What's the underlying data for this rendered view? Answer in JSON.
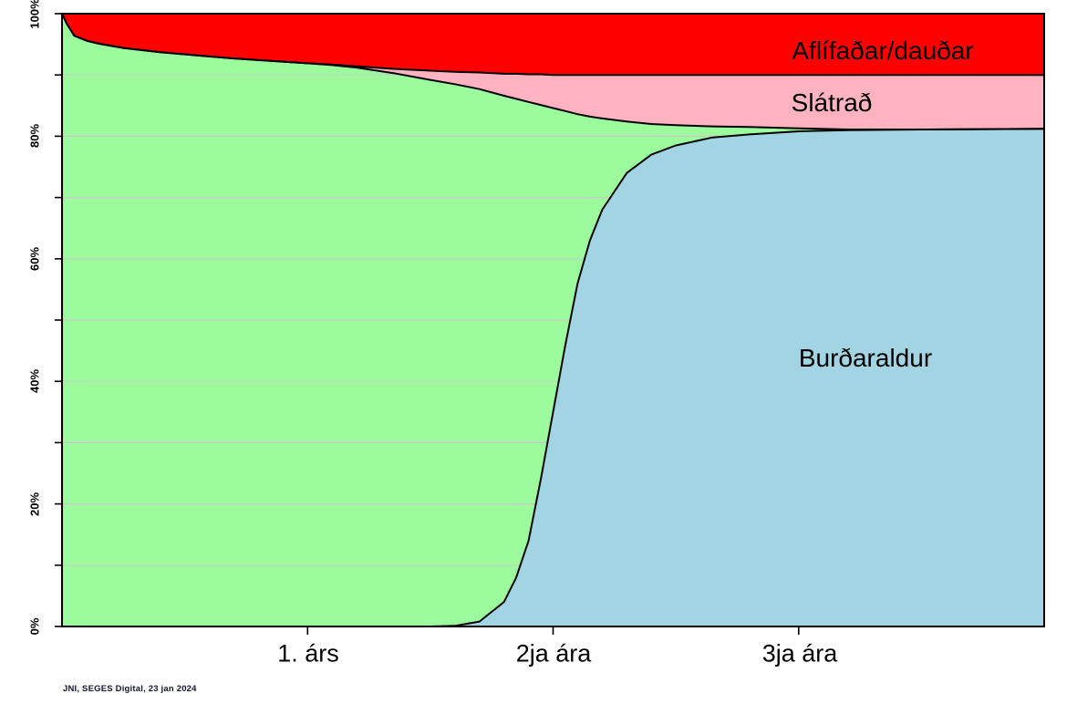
{
  "footer": {
    "credit": "JNI, SEGES Digital, 23 jan 2024"
  },
  "chart_data": {
    "type": "area",
    "stacked": true,
    "title": "",
    "xlabel": "",
    "ylabel": "",
    "xlim": [
      0,
      4
    ],
    "ylim": [
      0,
      100
    ],
    "grid": true,
    "grid_step": 10,
    "legend_position": "inline-labels",
    "xticks": [
      {
        "v": 1,
        "label": "1. árs"
      },
      {
        "v": 2,
        "label": "2ja ára"
      },
      {
        "v": 3,
        "label": "3ja ára"
      }
    ],
    "yticks": [
      {
        "v": 0,
        "label": "0%"
      },
      {
        "v": 20,
        "label": "20%"
      },
      {
        "v": 40,
        "label": "40%"
      },
      {
        "v": 60,
        "label": "60%"
      },
      {
        "v": 80,
        "label": "80%"
      },
      {
        "v": 100,
        "label": "100%"
      }
    ],
    "colors": {
      "grid": "#c9c9c9",
      "axis": "#000000",
      "outline": "#000000"
    },
    "x": [
      0.0,
      0.02,
      0.05,
      0.1,
      0.15,
      0.25,
      0.4,
      0.55,
      0.7,
      0.85,
      1.0,
      1.1,
      1.2,
      1.35,
      1.5,
      1.6,
      1.7,
      1.8,
      1.85,
      1.9,
      1.95,
      2.0,
      2.05,
      2.1,
      2.15,
      2.2,
      2.3,
      2.4,
      2.5,
      2.65,
      2.8,
      3.0,
      3.2,
      3.5,
      4.0
    ],
    "series": [
      {
        "name": "Burðaraldur",
        "color": "#a2d4e4",
        "values": [
          0,
          0,
          0,
          0,
          0,
          0,
          0,
          0,
          0,
          0,
          0,
          0,
          0,
          0,
          0,
          0.1,
          0.8,
          4.0,
          8.0,
          14.0,
          24.0,
          35.0,
          46.0,
          56.0,
          63.0,
          68.0,
          74.0,
          77.0,
          78.5,
          79.8,
          80.3,
          80.8,
          81.0,
          81.1,
          81.2
        ]
      },
      {
        "name": "",
        "color": "#9cfb9c",
        "values": [
          100,
          98.3,
          96.4,
          95.6,
          95.1,
          94.4,
          93.7,
          93.2,
          92.7,
          92.3,
          91.9,
          91.6,
          91.2,
          90.3,
          89.2,
          88.4,
          86.9,
          82.6,
          78.1,
          71.6,
          61.1,
          49.6,
          38.1,
          27.6,
          20.2,
          14.9,
          8.4,
          5.0,
          3.3,
          1.8,
          1.2,
          0.5,
          0.1,
          0.0,
          0.0
        ]
      },
      {
        "name": "Slátrað",
        "color": "#ffb3c1",
        "values": [
          0,
          0,
          0,
          0,
          0,
          0,
          0,
          0,
          0,
          0,
          0,
          0.1,
          0.2,
          0.7,
          1.5,
          2.0,
          2.7,
          3.6,
          4.1,
          4.5,
          5.0,
          5.4,
          5.9,
          6.4,
          6.8,
          7.1,
          7.6,
          8.0,
          8.2,
          8.4,
          8.5,
          8.7,
          8.9,
          8.9,
          8.8
        ]
      },
      {
        "name": "Aflífaðar/dauðar",
        "color": "#fe0000",
        "values": [
          0,
          1.7,
          3.6,
          4.4,
          4.9,
          5.6,
          6.3,
          6.8,
          7.3,
          7.7,
          8.1,
          8.3,
          8.6,
          9.0,
          9.3,
          9.5,
          9.6,
          9.8,
          9.8,
          9.9,
          9.9,
          10.0,
          10.0,
          10.0,
          10.0,
          10.0,
          10.0,
          10.0,
          10.0,
          10.0,
          10.0,
          10.0,
          10.0,
          10.0,
          10.0
        ]
      }
    ]
  }
}
